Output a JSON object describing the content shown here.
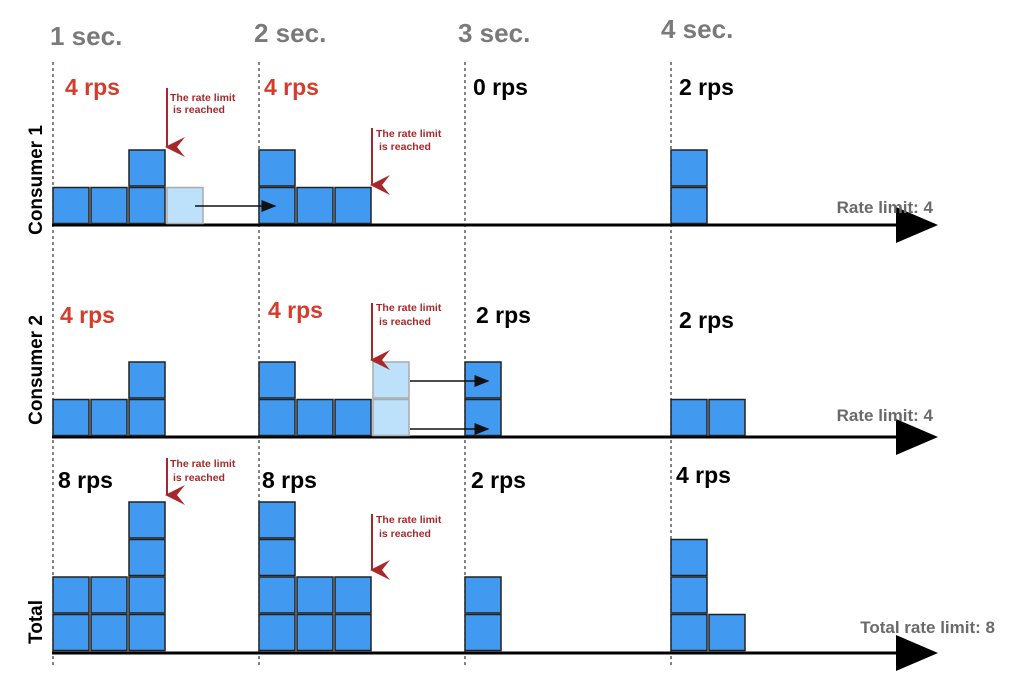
{
  "columns": [
    "1 sec.",
    "2 sec.",
    "3 sec.",
    "4 sec."
  ],
  "colors": {
    "box": "#4299f0",
    "box_deferred": "#bde0fb",
    "rate_exceeded": "#d63b2c",
    "note": "#a8282a",
    "normal": "#000000"
  },
  "note": {
    "line1": "The rate limit",
    "line2": "is reached"
  },
  "rows": [
    {
      "label": "Consumer 1",
      "limit": "Rate limit: 4",
      "rps": [
        "4 rps",
        "4 rps",
        "0 rps",
        "2 rps"
      ]
    },
    {
      "label": "Consumer 2",
      "limit": "Rate limit: 4",
      "rps": [
        "4 rps",
        "4 rps",
        "2 rps",
        "2 rps"
      ]
    },
    {
      "label": "Total",
      "limit": "Total rate limit: 8",
      "rps": [
        "8 rps",
        "8 rps",
        "2 rps",
        "4 rps"
      ]
    }
  ]
}
